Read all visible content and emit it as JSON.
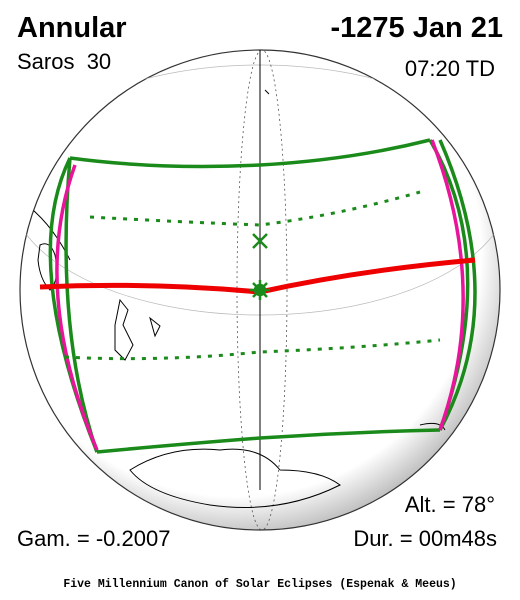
{
  "header": {
    "eclipse_type": "Annular",
    "saros": "Saros  30",
    "date": "-1275 Jan 21",
    "time": "07:20 TD"
  },
  "stats": {
    "altitude": "Alt. = 78°",
    "gamma": "Gam. = -0.2007",
    "duration": "Dur. = 00m48s"
  },
  "footer": {
    "credit": "Five Millennium Canon of Solar Eclipses (Espenak & Meeus)"
  }
}
